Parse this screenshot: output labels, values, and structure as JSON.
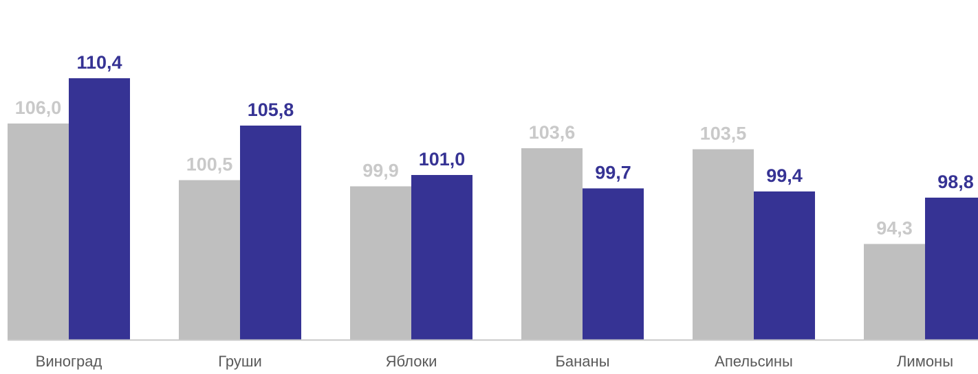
{
  "chart_data": {
    "type": "bar",
    "categories": [
      "Виноград",
      "Груши",
      "Яблоки",
      "Бананы",
      "Апельсины",
      "Лимоны"
    ],
    "series": [
      {
        "color": "#bfbfbf",
        "label_color": "#c9c9c9",
        "values": [
          106.0,
          100.5,
          99.9,
          103.6,
          103.5,
          94.3
        ],
        "labels": [
          "106,0",
          "100,5",
          "99,9",
          "103,6",
          "103,5",
          "94,3"
        ]
      },
      {
        "color": "#363394",
        "label_color": "#363394",
        "values": [
          110.4,
          105.8,
          101.0,
          99.7,
          99.4,
          98.8
        ],
        "labels": [
          "110,4",
          "105,8",
          "101,0",
          "99,7",
          "99,4",
          "98,8"
        ]
      }
    ],
    "ylim": [
      85,
      114.2
    ],
    "grid": false,
    "legend": "none",
    "axis_color": "#c8c8c8"
  }
}
